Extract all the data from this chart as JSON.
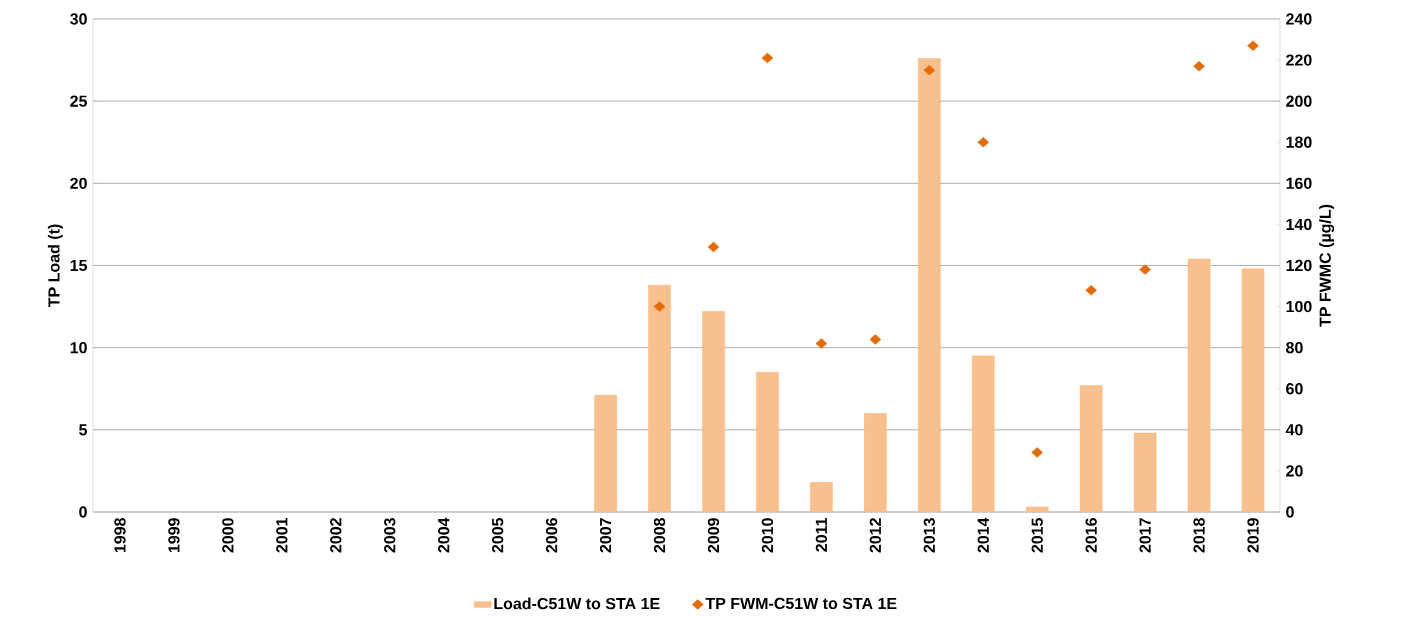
{
  "chart_data": {
    "type": "bar",
    "ylabel": "TP Load (t)",
    "y2label": "TP FWMC (µg/L)",
    "categories": [
      "1998",
      "1999",
      "2000",
      "2001",
      "2002",
      "2003",
      "2004",
      "2005",
      "2006",
      "2007",
      "2008",
      "2009",
      "2010",
      "2011",
      "2012",
      "2013",
      "2014",
      "2015",
      "2016",
      "2017",
      "2018",
      "2019"
    ],
    "series": [
      {
        "name": "Load-C51W to STA 1E",
        "color": "#f9c08f",
        "values": [
          null,
          null,
          null,
          null,
          null,
          null,
          null,
          null,
          null,
          7.1,
          13.8,
          12.2,
          8.5,
          1.8,
          6.0,
          27.6,
          9.5,
          0.3,
          7.7,
          4.8,
          15.4,
          14.8
        ]
      },
      {
        "name": "TP FWM-C51W to STA 1E",
        "type": "scatter",
        "axis": "y2",
        "marker": "diamond",
        "color": "#e36c0a",
        "values": [
          null,
          null,
          null,
          null,
          null,
          null,
          null,
          null,
          null,
          null,
          100,
          129,
          221,
          82,
          84,
          215,
          180,
          29,
          108,
          118,
          217,
          227
        ]
      }
    ],
    "ylim": [
      0,
      30
    ],
    "yticks": [
      0,
      5,
      10,
      15,
      20,
      25,
      30
    ],
    "y2lim": [
      0,
      240
    ],
    "y2ticks": [
      0,
      20,
      40,
      60,
      80,
      100,
      120,
      140,
      160,
      180,
      200,
      220,
      240
    ],
    "grid": "y",
    "legend": "bottom"
  }
}
